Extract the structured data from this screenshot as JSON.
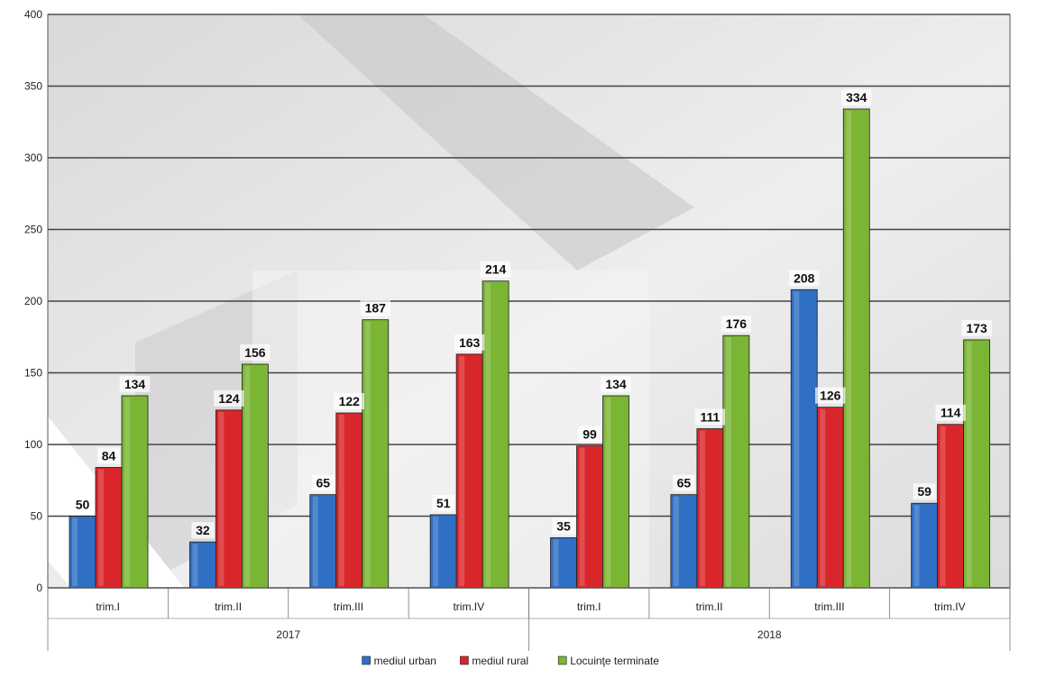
{
  "chart_data": {
    "type": "bar",
    "ylim": [
      0,
      400
    ],
    "yticks": [
      0,
      50,
      100,
      150,
      200,
      250,
      300,
      350,
      400
    ],
    "grid": true,
    "legend_position": "bottom",
    "groups": [
      {
        "label": "2017",
        "categories": [
          "trim.I",
          "trim.II",
          "trim.III",
          "trim.IV"
        ]
      },
      {
        "label": "2018",
        "categories": [
          "trim.I",
          "trim.II",
          "trim.III",
          "trim.IV"
        ]
      }
    ],
    "series": [
      {
        "name": "mediul urban",
        "color": "#2f6fc4",
        "values": [
          50,
          32,
          65,
          51,
          35,
          65,
          208,
          59
        ]
      },
      {
        "name": "mediul rural",
        "color": "#d9262b",
        "values": [
          84,
          124,
          122,
          163,
          99,
          111,
          126,
          114
        ]
      },
      {
        "name": "Locuinţe terminate",
        "color": "#7ab534",
        "values": [
          134,
          156,
          187,
          214,
          134,
          176,
          334,
          173
        ]
      }
    ]
  }
}
